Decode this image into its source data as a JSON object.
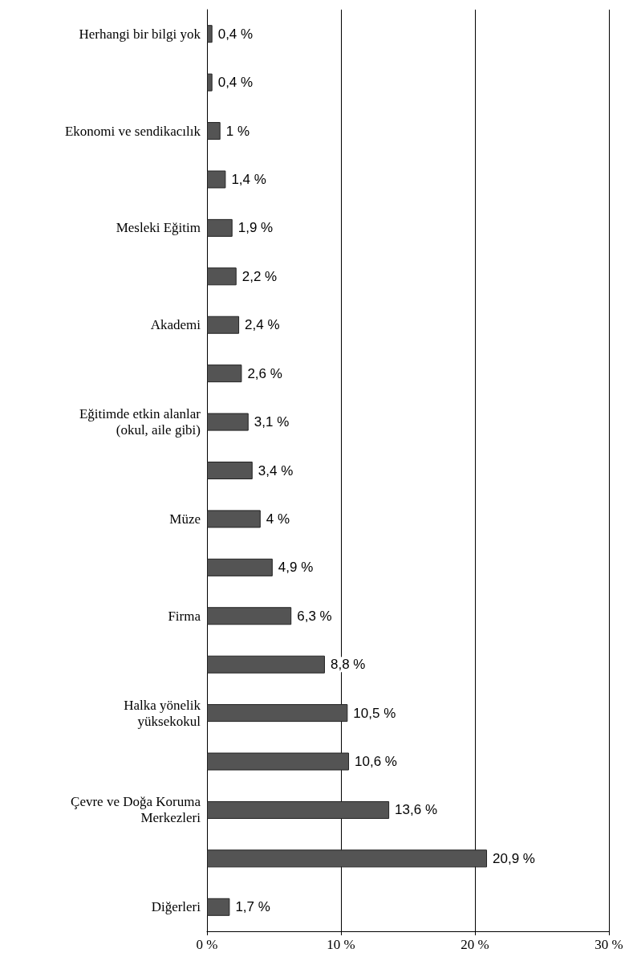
{
  "chart_data": {
    "type": "bar",
    "orientation": "horizontal",
    "categories": [
      "Herhangi bir bilgi yok",
      null,
      "Ekonomi ve sendikacılık",
      null,
      "Mesleki Eğitim",
      null,
      "Akademi",
      null,
      "Eğitimde etkin alanlar\n(okul, aile gibi)",
      null,
      "Müze",
      null,
      "Firma",
      null,
      "Halka yönelik\nyüksekokul",
      null,
      "Çevre ve Doğa Koruma\nMerkezleri",
      null,
      "Diğerleri"
    ],
    "values": [
      0.4,
      0.4,
      1,
      1.4,
      1.9,
      2.2,
      2.4,
      2.6,
      3.1,
      3.4,
      4,
      4.9,
      6.3,
      8.8,
      10.5,
      10.6,
      13.6,
      20.9,
      1.7
    ],
    "value_labels": [
      "0,4 %",
      "0,4 %",
      "1 %",
      "1,4 %",
      "1,9 %",
      "2,2 %",
      "2,4 %",
      "2,6 %",
      "3,1 %",
      "3,4 %",
      "4 %",
      "4,9 %",
      "6,3 %",
      "8,8 %",
      "10,5 %",
      "10,6 %",
      "13,6 %",
      "20,9 %",
      "1,7 %"
    ],
    "color": "#545454",
    "xlim": [
      0,
      30
    ],
    "xticks": [
      {
        "value": 0,
        "label": "0 %"
      },
      {
        "value": 10,
        "label": "10 %"
      },
      {
        "value": 20,
        "label": "20 %"
      },
      {
        "value": 30,
        "label": "30 %"
      }
    ],
    "grid": "x"
  }
}
